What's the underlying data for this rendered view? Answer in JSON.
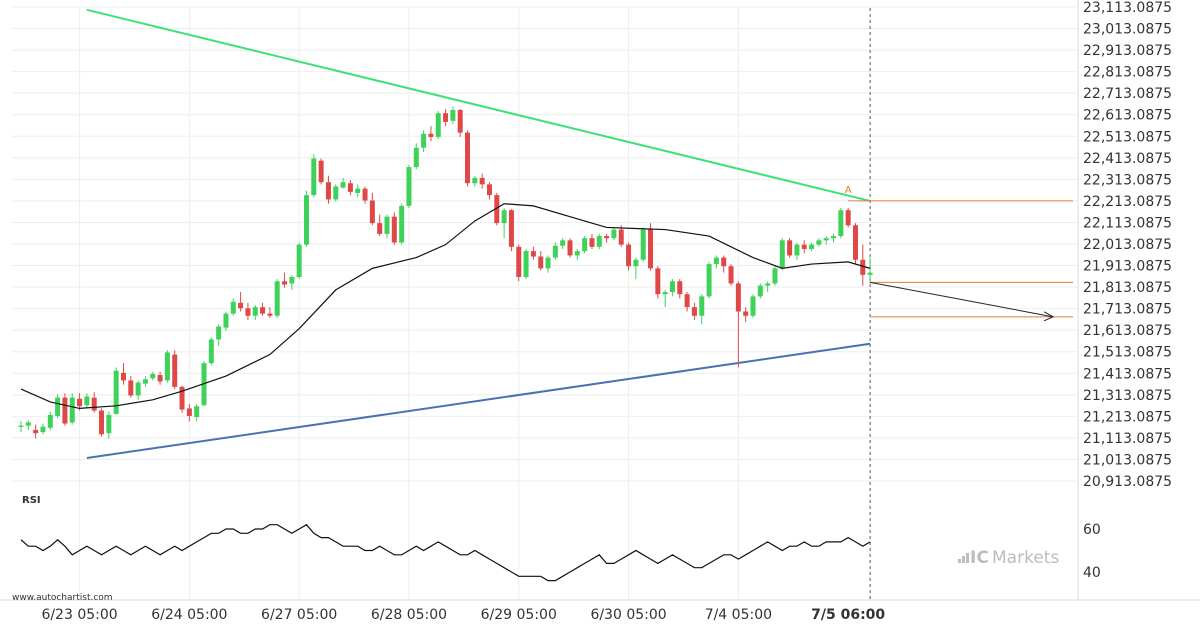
{
  "chart_data": {
    "type": "candlestick",
    "title": "",
    "colors": {
      "up": "#3fd25a",
      "down": "#e04848",
      "ma": "#111111",
      "upper_trend": "#3ee07a",
      "lower_trend": "#4a72b0",
      "projection": "#222222",
      "level": "#e07a3a",
      "rsi": "#111111",
      "grid": "#eeeeee"
    },
    "price_axis": {
      "ticks": [
        "23,113.0875",
        "23,013.0875",
        "22,913.0875",
        "22,813.0875",
        "22,713.0875",
        "22,613.0875",
        "22,513.0875",
        "22,413.0875",
        "22,313.0875",
        "22,213.0875",
        "22,113.0875",
        "22,013.0875",
        "21,913.0875",
        "21,813.0875",
        "21,713.0875",
        "21,613.0875",
        "21,513.0875",
        "21,413.0875",
        "21,313.0875",
        "21,213.0875",
        "21,113.0875",
        "21,013.0875",
        "20,913.0875"
      ],
      "tick_values": [
        23113.0875,
        23013.0875,
        22913.0875,
        22813.0875,
        22713.0875,
        22613.0875,
        22513.0875,
        22413.0875,
        22313.0875,
        22213.0875,
        22113.0875,
        22013.0875,
        21913.0875,
        21813.0875,
        21713.0875,
        21613.0875,
        21513.0875,
        21413.0875,
        21313.0875,
        21213.0875,
        21113.0875,
        21013.0875,
        20913.0875
      ]
    },
    "time_axis": {
      "labels": [
        "6/23 05:00",
        "6/24 05:00",
        "6/27 05:00",
        "6/28 05:00",
        "6/29 05:00",
        "6/30 05:00",
        "7/4 05:00",
        "7/5 06:00"
      ],
      "label_bars": [
        8,
        23,
        38,
        53,
        68,
        83,
        98,
        113
      ],
      "bold_last": true
    },
    "n_bars": 117,
    "candles": [
      [
        21164,
        21190,
        21140,
        21170
      ],
      [
        21170,
        21195,
        21150,
        21185
      ],
      [
        21150,
        21175,
        21110,
        21135
      ],
      [
        21140,
        21180,
        21130,
        21165
      ],
      [
        21160,
        21235,
        21150,
        21220
      ],
      [
        21215,
        21315,
        21205,
        21300
      ],
      [
        21300,
        21320,
        21170,
        21180
      ],
      [
        21185,
        21320,
        21175,
        21300
      ],
      [
        21295,
        21320,
        21240,
        21260
      ],
      [
        21265,
        21320,
        21250,
        21305
      ],
      [
        21300,
        21325,
        21230,
        21240
      ],
      [
        21240,
        21250,
        21120,
        21130
      ],
      [
        21135,
        21235,
        21110,
        21220
      ],
      [
        21225,
        21440,
        21220,
        21425
      ],
      [
        21415,
        21460,
        21360,
        21380
      ],
      [
        21380,
        21400,
        21300,
        21310
      ],
      [
        21310,
        21380,
        21290,
        21370
      ],
      [
        21365,
        21400,
        21350,
        21385
      ],
      [
        21390,
        21420,
        21380,
        21410
      ],
      [
        21405,
        21420,
        21360,
        21375
      ],
      [
        21380,
        21520,
        21370,
        21510
      ],
      [
        21500,
        21520,
        21340,
        21350
      ],
      [
        21350,
        21355,
        21230,
        21245
      ],
      [
        21250,
        21270,
        21190,
        21215
      ],
      [
        21210,
        21270,
        21190,
        21260
      ],
      [
        21265,
        21470,
        21260,
        21460
      ],
      [
        21460,
        21580,
        21450,
        21570
      ],
      [
        21570,
        21640,
        21540,
        21630
      ],
      [
        21625,
        21700,
        21610,
        21690
      ],
      [
        21690,
        21760,
        21680,
        21745
      ],
      [
        21740,
        21790,
        21700,
        21715
      ],
      [
        21715,
        21740,
        21660,
        21680
      ],
      [
        21680,
        21730,
        21660,
        21720
      ],
      [
        21720,
        21740,
        21680,
        21690
      ],
      [
        21690,
        21720,
        21670,
        21680
      ],
      [
        21680,
        21850,
        21670,
        21840
      ],
      [
        21840,
        21880,
        21810,
        21825
      ],
      [
        21830,
        21870,
        21800,
        21860
      ],
      [
        21860,
        22020,
        21850,
        22010
      ],
      [
        22010,
        22260,
        22000,
        22240
      ],
      [
        22240,
        22430,
        22230,
        22410
      ],
      [
        22400,
        22410,
        22290,
        22300
      ],
      [
        22300,
        22330,
        22200,
        22220
      ],
      [
        22220,
        22290,
        22210,
        22280
      ],
      [
        22275,
        22320,
        22270,
        22300
      ],
      [
        22295,
        22310,
        22240,
        22255
      ],
      [
        22250,
        22290,
        22230,
        22270
      ],
      [
        22270,
        22280,
        22200,
        22215
      ],
      [
        22215,
        22250,
        22100,
        22110
      ],
      [
        22110,
        22150,
        22050,
        22060
      ],
      [
        22060,
        22150,
        22040,
        22140
      ],
      [
        22140,
        22160,
        22010,
        22020
      ],
      [
        22020,
        22200,
        22010,
        22190
      ],
      [
        22190,
        22380,
        22180,
        22370
      ],
      [
        22370,
        22480,
        22360,
        22460
      ],
      [
        22460,
        22540,
        22440,
        22525
      ],
      [
        22525,
        22560,
        22490,
        22510
      ],
      [
        22510,
        22630,
        22500,
        22620
      ],
      [
        22620,
        22640,
        22560,
        22580
      ],
      [
        22585,
        22650,
        22570,
        22635
      ],
      [
        22635,
        22640,
        22510,
        22530
      ],
      [
        22530,
        22540,
        22280,
        22295
      ],
      [
        22295,
        22330,
        22280,
        22320
      ],
      [
        22320,
        22340,
        22270,
        22290
      ],
      [
        22290,
        22300,
        22220,
        22240
      ],
      [
        22240,
        22250,
        22100,
        22110
      ],
      [
        22110,
        22180,
        22040,
        22170
      ],
      [
        22170,
        22175,
        21980,
        22000
      ],
      [
        22000,
        22010,
        21840,
        21860
      ],
      [
        21860,
        21990,
        21850,
        21980
      ],
      [
        21980,
        22000,
        21940,
        21955
      ],
      [
        21955,
        21980,
        21890,
        21900
      ],
      [
        21900,
        21960,
        21880,
        21950
      ],
      [
        21950,
        22020,
        21940,
        22005
      ],
      [
        22005,
        22040,
        21990,
        22030
      ],
      [
        22030,
        22040,
        21950,
        21960
      ],
      [
        21960,
        21990,
        21940,
        21980
      ],
      [
        21980,
        22050,
        21970,
        22040
      ],
      [
        22040,
        22060,
        21990,
        22000
      ],
      [
        22000,
        22060,
        21990,
        22050
      ],
      [
        22050,
        22060,
        22020,
        22040
      ],
      [
        22040,
        22090,
        22030,
        22080
      ],
      [
        22080,
        22100,
        22000,
        22010
      ],
      [
        22010,
        22020,
        21890,
        21910
      ],
      [
        21910,
        21950,
        21850,
        21940
      ],
      [
        21940,
        22090,
        21930,
        22080
      ],
      [
        22080,
        22110,
        21890,
        21900
      ],
      [
        21900,
        21910,
        21760,
        21780
      ],
      [
        21780,
        21800,
        21720,
        21790
      ],
      [
        21790,
        21850,
        21770,
        21840
      ],
      [
        21840,
        21850,
        21760,
        21780
      ],
      [
        21780,
        21790,
        21700,
        21720
      ],
      [
        21720,
        21740,
        21660,
        21680
      ],
      [
        21680,
        21780,
        21640,
        21770
      ],
      [
        21770,
        21930,
        21760,
        21920
      ],
      [
        21920,
        21960,
        21900,
        21950
      ],
      [
        21950,
        21960,
        21880,
        21910
      ],
      [
        21910,
        21920,
        21820,
        21830
      ],
      [
        21830,
        21840,
        21440,
        21700
      ],
      [
        21700,
        21720,
        21650,
        21680
      ],
      [
        21680,
        21780,
        21670,
        21770
      ],
      [
        21770,
        21830,
        21760,
        21820
      ],
      [
        21820,
        21840,
        21790,
        21830
      ],
      [
        21830,
        21910,
        21820,
        21900
      ],
      [
        21900,
        22040,
        21890,
        22030
      ],
      [
        22030,
        22040,
        21950,
        21960
      ],
      [
        21960,
        22020,
        21940,
        22010
      ],
      [
        22010,
        22030,
        21970,
        21990
      ],
      [
        21990,
        22020,
        21980,
        22010
      ],
      [
        22010,
        22040,
        22000,
        22030
      ],
      [
        22030,
        22050,
        22010,
        22040
      ],
      [
        22040,
        22060,
        22020,
        22050
      ],
      [
        22050,
        22180,
        22040,
        22170
      ],
      [
        22170,
        22180,
        22090,
        22100
      ],
      [
        22100,
        22110,
        21920,
        21940
      ],
      [
        21940,
        22010,
        21820,
        21870
      ],
      [
        21870,
        21950,
        21830,
        21880
      ]
    ],
    "moving_average": [
      [
        0,
        21340
      ],
      [
        4,
        21280
      ],
      [
        8,
        21250
      ],
      [
        13,
        21262
      ],
      [
        18,
        21290
      ],
      [
        22,
        21330
      ],
      [
        28,
        21400
      ],
      [
        34,
        21500
      ],
      [
        38,
        21620
      ],
      [
        43,
        21800
      ],
      [
        48,
        21900
      ],
      [
        54,
        21950
      ],
      [
        58,
        22010
      ],
      [
        62,
        22120
      ],
      [
        66,
        22200
      ],
      [
        70,
        22190
      ],
      [
        75,
        22140
      ],
      [
        80,
        22090
      ],
      [
        88,
        22080
      ],
      [
        94,
        22050
      ],
      [
        100,
        21950
      ],
      [
        104,
        21900
      ],
      [
        108,
        21920
      ],
      [
        113,
        21930
      ],
      [
        116,
        21900
      ]
    ],
    "trend_upper": {
      "from": [
        9,
        23100
      ],
      "to": [
        116,
        22213
      ]
    },
    "trend_lower": {
      "from": [
        9,
        21020
      ],
      "to": [
        116,
        21550
      ]
    },
    "horizontal_levels": [
      {
        "value": 22213.0875,
        "from_bar": 113
      },
      {
        "value": 21835,
        "from_bar": 116
      },
      {
        "value": 21675,
        "from_bar": 116
      }
    ],
    "projection": {
      "from": [
        116,
        21835
      ],
      "to": [
        141,
        21675
      ]
    },
    "pattern_label": "A",
    "pattern_label_at": [
      113,
      22250
    ],
    "rsi": {
      "label": "RSI",
      "ticks": [
        "60",
        "40"
      ],
      "tick_values": [
        60,
        40
      ],
      "values": [
        55,
        52,
        52,
        50,
        52,
        55,
        52,
        48,
        50,
        52,
        50,
        48,
        50,
        52,
        50,
        48,
        50,
        52,
        50,
        48,
        50,
        52,
        50,
        52,
        54,
        56,
        58,
        58,
        60,
        60,
        58,
        58,
        60,
        60,
        62,
        62,
        60,
        58,
        60,
        62,
        58,
        56,
        56,
        54,
        52,
        52,
        52,
        50,
        50,
        52,
        50,
        48,
        48,
        50,
        52,
        50,
        52,
        54,
        52,
        50,
        48,
        48,
        50,
        48,
        46,
        44,
        42,
        40,
        38,
        38,
        38,
        38,
        36,
        36,
        38,
        40,
        42,
        44,
        46,
        48,
        44,
        44,
        46,
        48,
        50,
        48,
        46,
        44,
        46,
        48,
        46,
        44,
        42,
        42,
        44,
        46,
        48,
        48,
        46,
        48,
        50,
        52,
        54,
        52,
        50,
        52,
        52,
        54,
        52,
        52,
        54,
        54,
        54,
        56,
        54,
        52,
        54
      ]
    }
  },
  "footer": {
    "watermark": "www.autochartist.com",
    "brand_prefix": "IC",
    "brand_suffix": "Markets"
  }
}
